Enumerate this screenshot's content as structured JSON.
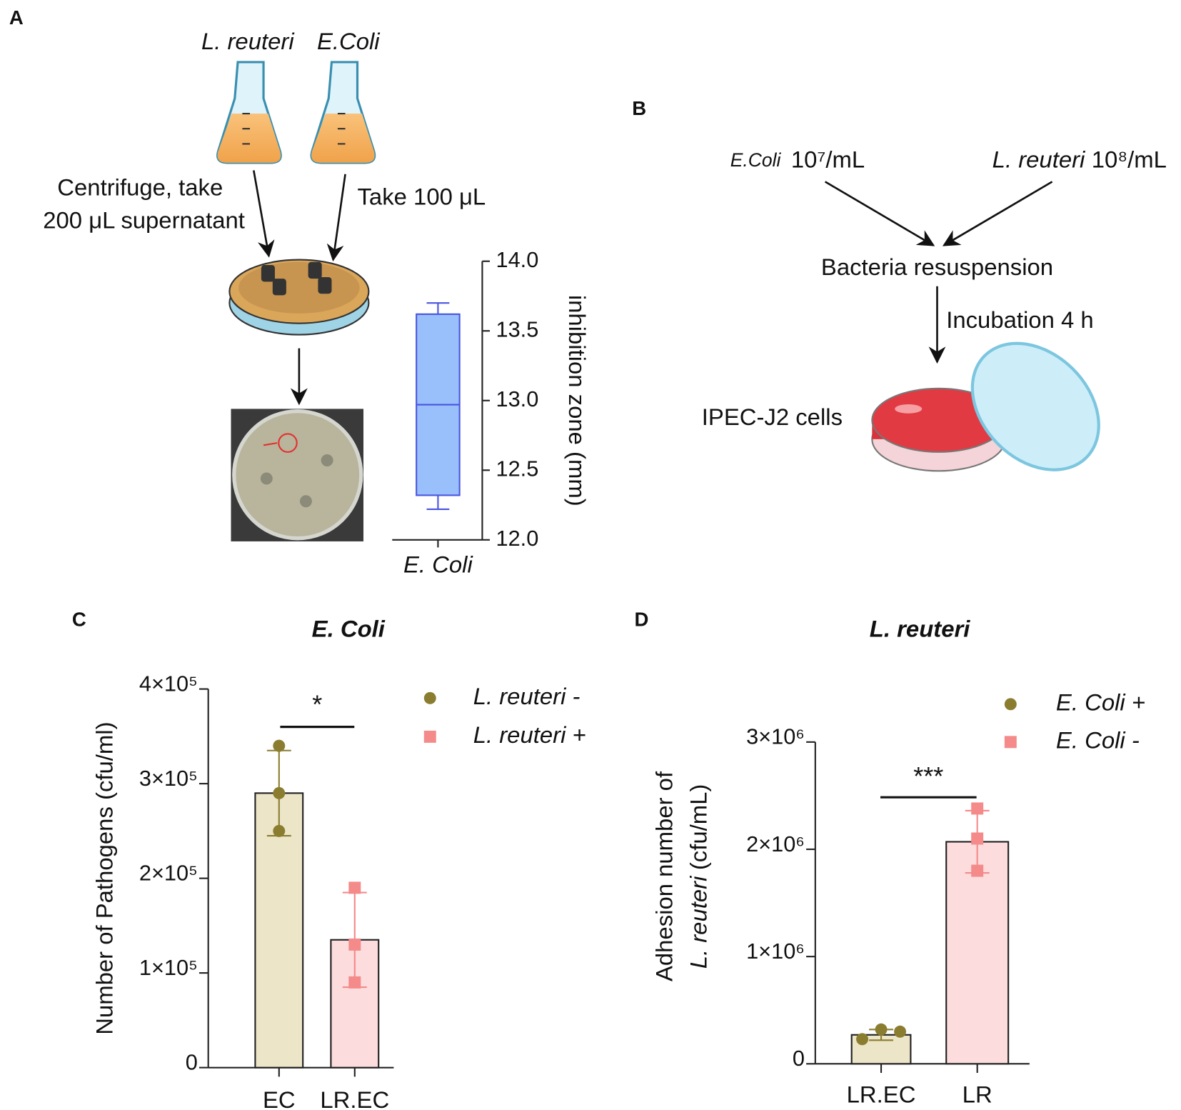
{
  "panel_labels": [
    "A",
    "B",
    "C",
    "D"
  ],
  "diagram_a": {
    "strains": [
      "L. reuteri",
      "E.Coli"
    ],
    "step1": [
      "Centrifuge, take",
      "200 μL supernatant"
    ],
    "step2": "Take 100 μL"
  },
  "diagram_b": {
    "inputs": [
      {
        "name": "E.Coli",
        "conc": "10⁷/mL"
      },
      {
        "name": "L. reuteri",
        "conc": "10⁸/mL"
      }
    ],
    "mix": "Bacteria resuspension",
    "step": "Incubation 4 h",
    "cells": "IPEC-J2 cells"
  },
  "chart_data": [
    {
      "type": "box",
      "ylabel": "inhibition zone  (mm)",
      "categories": [
        "E. Coli"
      ],
      "color": "#4a55e0",
      "fill": "#99c0fa",
      "boxes": [
        {
          "min": 12.22,
          "q1": 12.32,
          "median": 12.97,
          "q3": 13.62,
          "max": 13.7
        }
      ],
      "ylim": [
        12,
        14
      ],
      "yticks": [
        {
          "value": 12,
          "label": "12.0"
        },
        {
          "value": 12.5,
          "label": "12.5"
        },
        {
          "value": 13,
          "label": "13.0"
        },
        {
          "value": 13.5,
          "label": "13.5"
        },
        {
          "value": 14,
          "label": "14.0"
        }
      ]
    },
    {
      "type": "bar",
      "title": "E. Coli",
      "ylabel": [
        "Number of Pathogens (cfu/ml)"
      ],
      "categories": [
        "EC",
        "LR.EC"
      ],
      "significance": "*",
      "series": [
        {
          "name": "L. reuteri -",
          "color": "#8b7d30",
          "fill": "#ece5c8",
          "marker": "circle",
          "value": 290000,
          "error": 45000,
          "points": [
            340000,
            290000,
            250000
          ]
        },
        {
          "name": "L. reuteri +",
          "color": "#f48a8a",
          "fill": "#fcdcdc",
          "marker": "square",
          "value": 135000,
          "error": 50000,
          "points": [
            190000,
            130000,
            90000
          ]
        }
      ],
      "ylim": [
        0,
        400000
      ],
      "yticks": [
        0,
        {
          "value": 100000,
          "label": "1×10⁵"
        },
        {
          "value": 200000,
          "label": "2×10⁵"
        },
        {
          "value": 300000,
          "label": "3×10⁵"
        },
        {
          "value": 400000,
          "label": "4×10⁵"
        }
      ]
    },
    {
      "type": "bar",
      "title": "L. reuteri",
      "ylabel": [
        "Adhesion number of",
        "L. reuteri",
        "(cfu/mL)"
      ],
      "categories": [
        "LR.EC",
        "LR"
      ],
      "significance": "***",
      "series": [
        {
          "name": "E. Coli +",
          "color": "#8b7d30",
          "fill": "#ece5c8",
          "marker": "circle",
          "value": 270000,
          "error": 50000,
          "points": [
            230000,
            320000,
            300000
          ]
        },
        {
          "name": "E. Coli -",
          "color": "#f48a8a",
          "fill": "#fcdcdc",
          "marker": "square",
          "value": 2070000,
          "error": 290000,
          "points": [
            2380000,
            2100000,
            1800000
          ]
        }
      ],
      "ylim": [
        0,
        3000000
      ],
      "yticks": [
        0,
        {
          "value": 1000000,
          "label": "1×10⁶"
        },
        {
          "value": 2000000,
          "label": "2×10⁶"
        },
        {
          "value": 3000000,
          "label": "3×10⁶"
        }
      ]
    }
  ]
}
